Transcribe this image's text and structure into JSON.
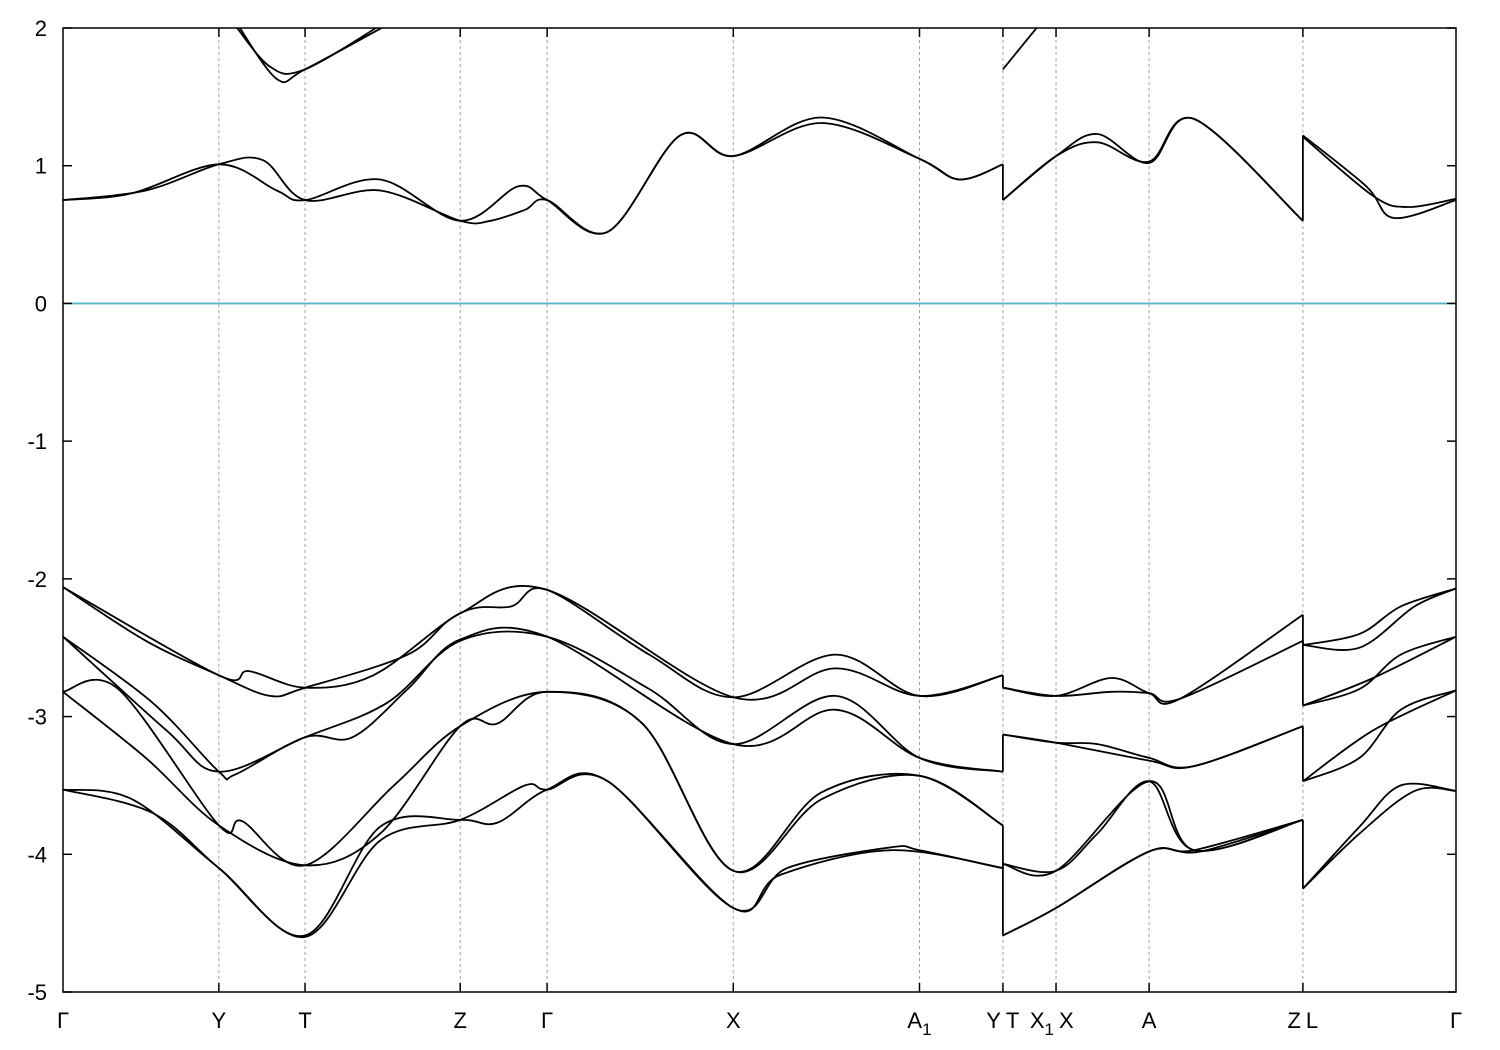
{
  "chart_data": {
    "type": "line",
    "title": "",
    "xlabel": "",
    "ylabel": "",
    "ylim": [
      -5,
      2
    ],
    "yticks": [
      2,
      1,
      0,
      -1,
      -2,
      -3,
      -4,
      -5
    ],
    "ytick_labels": [
      "2",
      "1",
      "0",
      "-1",
      "-2",
      "-3",
      "-4",
      "-5"
    ],
    "xlim": [
      0,
      20.2
    ],
    "kpoints": [
      {
        "label": "Γ",
        "x": 0
      },
      {
        "label": "Y",
        "x": 2.26
      },
      {
        "label": "T",
        "x": 3.51
      },
      {
        "label": "Z",
        "x": 5.76
      },
      {
        "label": "Γ",
        "x": 7.02
      },
      {
        "label": "X",
        "x": 9.72
      },
      {
        "label": "A",
        "sub": "1",
        "x": 12.42
      },
      {
        "label": "Y",
        "x": 13.63
      },
      {
        "label": "T",
        "x": 13.63
      },
      {
        "label": "X",
        "sub": "1",
        "x": 14.4
      },
      {
        "label": "X",
        "x": 14.4
      },
      {
        "label": "A",
        "x": 15.75
      },
      {
        "label": "Z",
        "x": 17.98
      },
      {
        "label": "L",
        "x": 17.98
      },
      {
        "label": "Γ",
        "x": 20.2
      }
    ],
    "vlines": [
      2.26,
      3.51,
      5.76,
      7.02,
      9.72,
      12.42,
      13.63,
      14.4,
      15.75,
      17.98
    ],
    "grid": "vertical-dashed",
    "fermi_level": 0,
    "colors": {
      "bands": "#000000",
      "fermi": "#5ab4c8"
    },
    "series": [
      {
        "values": [
          [
            0,
            0.75
          ],
          [
            1,
            0.8
          ],
          [
            2.26,
            1.01
          ],
          [
            3.1,
            0.82
          ],
          [
            3.51,
            0.75
          ],
          [
            4.6,
            0.9
          ],
          [
            5.76,
            0.6
          ],
          [
            6.6,
            0.85
          ],
          [
            7.02,
            0.75
          ],
          [
            7.9,
            0.52
          ],
          [
            8.95,
            1.22
          ],
          [
            9.72,
            1.07
          ],
          [
            11.0,
            1.35
          ],
          [
            12.42,
            1.05
          ],
          [
            13.0,
            0.9
          ],
          [
            13.63,
            1.01
          ]
        ]
      },
      {
        "values": [
          [
            0,
            0.75
          ],
          [
            1.2,
            0.82
          ],
          [
            2.26,
            1.01
          ],
          [
            2.9,
            1.04
          ],
          [
            3.51,
            0.75
          ],
          [
            4.6,
            0.82
          ],
          [
            5.76,
            0.6
          ],
          [
            6.2,
            0.6
          ],
          [
            6.7,
            0.68
          ],
          [
            7.02,
            0.75
          ],
          [
            7.9,
            0.52
          ],
          [
            8.95,
            1.22
          ],
          [
            9.72,
            1.07
          ],
          [
            11.0,
            1.31
          ],
          [
            12.42,
            1.05
          ],
          [
            13.0,
            0.9
          ],
          [
            13.63,
            1.01
          ]
        ]
      },
      {
        "values": [
          [
            2.45,
            2.05
          ],
          [
            3.0,
            1.72
          ],
          [
            3.51,
            1.7
          ],
          [
            4.7,
            2.05
          ]
        ]
      },
      {
        "values": [
          [
            2.5,
            2.05
          ],
          [
            3.1,
            1.63
          ],
          [
            3.51,
            1.7
          ],
          [
            4.8,
            2.05
          ]
        ]
      },
      {
        "values": [
          [
            13.63,
            1.7
          ],
          [
            14.2,
            2.05
          ]
        ]
      },
      {
        "values": [
          [
            13.63,
            0.75
          ],
          [
            14.4,
            1.07
          ],
          [
            15.0,
            1.23
          ],
          [
            15.75,
            1.02
          ],
          [
            16.4,
            1.34
          ],
          [
            17.98,
            0.6
          ]
        ]
      },
      {
        "values": [
          [
            13.63,
            0.75
          ],
          [
            14.4,
            1.07
          ],
          [
            15.0,
            1.17
          ],
          [
            15.75,
            1.03
          ],
          [
            16.4,
            1.34
          ],
          [
            17.98,
            0.6
          ]
        ]
      },
      {
        "values": [
          [
            17.98,
            1.22
          ],
          [
            18.9,
            0.85
          ],
          [
            19.3,
            0.62
          ],
          [
            20.2,
            0.75
          ]
        ]
      },
      {
        "values": [
          [
            17.98,
            1.21
          ],
          [
            19.0,
            0.78
          ],
          [
            19.5,
            0.7
          ],
          [
            20.2,
            0.76
          ]
        ]
      },
      {
        "values": [
          [
            0,
            -2.06
          ],
          [
            2.26,
            -2.7
          ],
          [
            2.7,
            -2.67
          ],
          [
            3.51,
            -2.79
          ],
          [
            4.5,
            -2.7
          ],
          [
            5.76,
            -2.25
          ],
          [
            6.5,
            -2.2
          ],
          [
            7.02,
            -2.08
          ],
          [
            8.5,
            -2.55
          ],
          [
            9.72,
            -2.86
          ],
          [
            11.2,
            -2.55
          ],
          [
            12.42,
            -2.85
          ],
          [
            13.63,
            -2.7
          ]
        ]
      },
      {
        "values": [
          [
            0,
            -2.06
          ],
          [
            1.2,
            -2.45
          ],
          [
            2.26,
            -2.7
          ],
          [
            3.0,
            -2.85
          ],
          [
            3.51,
            -2.79
          ],
          [
            5.0,
            -2.55
          ],
          [
            5.76,
            -2.25
          ],
          [
            7.02,
            -2.08
          ],
          [
            9.72,
            -2.86
          ],
          [
            11.2,
            -2.65
          ],
          [
            12.42,
            -2.85
          ],
          [
            13.63,
            -2.7
          ]
        ]
      },
      {
        "values": [
          [
            0,
            -2.42
          ],
          [
            1.5,
            -3.1
          ],
          [
            2.26,
            -3.4
          ],
          [
            3.51,
            -3.15
          ],
          [
            4.7,
            -2.9
          ],
          [
            5.76,
            -2.45
          ],
          [
            7.02,
            -2.42
          ],
          [
            8.5,
            -2.8
          ],
          [
            9.72,
            -3.2
          ],
          [
            11.2,
            -2.85
          ],
          [
            12.42,
            -3.3
          ],
          [
            13.63,
            -3.4
          ]
        ]
      },
      {
        "values": [
          [
            0,
            -2.42
          ],
          [
            1.3,
            -2.9
          ],
          [
            2.26,
            -3.4
          ],
          [
            2.5,
            -3.42
          ],
          [
            3.51,
            -3.15
          ],
          [
            4.2,
            -3.15
          ],
          [
            5.0,
            -2.8
          ],
          [
            5.76,
            -2.44
          ],
          [
            7.02,
            -2.42
          ],
          [
            9.72,
            -3.2
          ],
          [
            11.2,
            -2.95
          ],
          [
            12.42,
            -3.3
          ],
          [
            13.63,
            -3.4
          ]
        ]
      },
      {
        "values": [
          [
            0,
            -2.82
          ],
          [
            1.2,
            -3.3
          ],
          [
            2.26,
            -3.79
          ],
          [
            3.51,
            -4.08
          ],
          [
            4.6,
            -3.85
          ],
          [
            5.76,
            -3.07
          ],
          [
            6.3,
            -3.05
          ],
          [
            7.02,
            -2.82
          ],
          [
            8.4,
            -3.05
          ],
          [
            9.72,
            -4.12
          ],
          [
            11.0,
            -3.6
          ],
          [
            12.42,
            -3.43
          ],
          [
            13.63,
            -3.79
          ]
        ]
      },
      {
        "values": [
          [
            0,
            -2.82
          ],
          [
            0.8,
            -2.8
          ],
          [
            2.26,
            -3.79
          ],
          [
            2.6,
            -3.76
          ],
          [
            3.51,
            -4.08
          ],
          [
            4.8,
            -3.5
          ],
          [
            5.76,
            -3.07
          ],
          [
            7.02,
            -2.82
          ],
          [
            8.4,
            -3.05
          ],
          [
            9.72,
            -4.12
          ],
          [
            11.0,
            -3.55
          ],
          [
            12.42,
            -3.43
          ],
          [
            13.63,
            -3.79
          ]
        ]
      },
      {
        "values": [
          [
            0,
            -3.53
          ],
          [
            1.3,
            -3.7
          ],
          [
            2.26,
            -4.1
          ],
          [
            3.51,
            -4.6
          ],
          [
            4.6,
            -3.9
          ],
          [
            5.76,
            -3.75
          ],
          [
            6.7,
            -3.5
          ],
          [
            7.02,
            -3.53
          ],
          [
            7.9,
            -3.47
          ],
          [
            9.72,
            -4.39
          ],
          [
            10.5,
            -4.1
          ],
          [
            12.0,
            -3.95
          ],
          [
            12.42,
            -3.97
          ],
          [
            13.63,
            -4.1
          ]
        ]
      },
      {
        "values": [
          [
            0,
            -3.53
          ],
          [
            1.0,
            -3.6
          ],
          [
            2.26,
            -4.1
          ],
          [
            3.51,
            -4.59
          ],
          [
            4.6,
            -3.8
          ],
          [
            5.76,
            -3.75
          ],
          [
            6.3,
            -3.77
          ],
          [
            7.02,
            -3.53
          ],
          [
            7.9,
            -3.47
          ],
          [
            9.72,
            -4.39
          ],
          [
            10.4,
            -4.15
          ],
          [
            12.0,
            -3.97
          ],
          [
            13.63,
            -4.1
          ]
        ]
      },
      {
        "values": [
          [
            13.63,
            -2.79
          ],
          [
            14.4,
            -2.85
          ],
          [
            15.2,
            -2.72
          ],
          [
            15.75,
            -2.83
          ],
          [
            16.2,
            -2.87
          ],
          [
            17.98,
            -2.26
          ]
        ]
      },
      {
        "values": [
          [
            13.63,
            -2.79
          ],
          [
            14.4,
            -2.85
          ],
          [
            15.2,
            -2.82
          ],
          [
            15.75,
            -2.83
          ],
          [
            16.2,
            -2.87
          ],
          [
            17.98,
            -2.45
          ]
        ]
      },
      {
        "values": [
          [
            13.63,
            -3.13
          ],
          [
            14.4,
            -3.19
          ],
          [
            15.0,
            -3.2
          ],
          [
            15.75,
            -3.3
          ],
          [
            16.4,
            -3.36
          ],
          [
            17.98,
            -3.07
          ]
        ]
      },
      {
        "values": [
          [
            13.63,
            -3.13
          ],
          [
            14.4,
            -3.19
          ],
          [
            15.75,
            -3.32
          ],
          [
            16.4,
            -3.36
          ],
          [
            17.98,
            -3.07
          ]
        ]
      },
      {
        "values": [
          [
            13.63,
            -4.07
          ],
          [
            14.4,
            -4.12
          ],
          [
            15.0,
            -3.85
          ],
          [
            15.75,
            -3.47
          ],
          [
            16.4,
            -3.97
          ],
          [
            17.98,
            -3.75
          ]
        ]
      },
      {
        "values": [
          [
            13.63,
            -4.07
          ],
          [
            14.4,
            -4.12
          ],
          [
            15.75,
            -3.47
          ],
          [
            16.4,
            -3.97
          ],
          [
            17.98,
            -3.75
          ]
        ]
      },
      {
        "values": [
          [
            13.63,
            -4.59
          ],
          [
            14.4,
            -4.39
          ],
          [
            15.75,
            -3.98
          ],
          [
            16.4,
            -3.97
          ],
          [
            17.98,
            -3.75
          ]
        ]
      },
      {
        "values": [
          [
            13.63,
            -4.59
          ],
          [
            14.4,
            -4.39
          ],
          [
            15.75,
            -3.98
          ],
          [
            16.5,
            -3.98
          ],
          [
            17.98,
            -3.75
          ]
        ]
      },
      {
        "values": [
          [
            17.98,
            -2.48
          ],
          [
            18.8,
            -2.5
          ],
          [
            19.6,
            -2.2
          ],
          [
            20.2,
            -2.07
          ]
        ]
      },
      {
        "values": [
          [
            17.98,
            -2.48
          ],
          [
            18.8,
            -2.4
          ],
          [
            19.4,
            -2.2
          ],
          [
            20.2,
            -2.07
          ]
        ]
      },
      {
        "values": [
          [
            17.98,
            -2.92
          ],
          [
            18.8,
            -2.8
          ],
          [
            19.4,
            -2.55
          ],
          [
            20.2,
            -2.42
          ]
        ]
      },
      {
        "values": [
          [
            17.98,
            -2.92
          ],
          [
            19.0,
            -2.72
          ],
          [
            20.2,
            -2.42
          ]
        ]
      },
      {
        "values": [
          [
            17.98,
            -3.47
          ],
          [
            18.8,
            -3.3
          ],
          [
            19.4,
            -2.95
          ],
          [
            20.2,
            -2.81
          ]
        ]
      },
      {
        "values": [
          [
            17.98,
            -3.47
          ],
          [
            19.0,
            -3.1
          ],
          [
            20.2,
            -2.81
          ]
        ]
      },
      {
        "values": [
          [
            17.98,
            -4.25
          ],
          [
            18.8,
            -3.8
          ],
          [
            19.4,
            -3.5
          ],
          [
            20.2,
            -3.54
          ]
        ]
      },
      {
        "values": [
          [
            17.98,
            -4.25
          ],
          [
            18.8,
            -3.85
          ],
          [
            19.6,
            -3.54
          ],
          [
            20.2,
            -3.54
          ]
        ]
      },
      {
        "values": [
          [
            13.63,
            -3.79
          ],
          [
            13.63,
            -4.59
          ]
        ]
      },
      {
        "values": [
          [
            13.63,
            -2.7
          ],
          [
            13.63,
            -2.79
          ]
        ]
      },
      {
        "values": [
          [
            13.63,
            -3.13
          ],
          [
            13.63,
            -3.4
          ]
        ]
      },
      {
        "values": [
          [
            13.63,
            -4.07
          ],
          [
            13.63,
            -4.1
          ]
        ]
      },
      {
        "values": [
          [
            13.63,
            0.75
          ],
          [
            13.63,
            1.01
          ]
        ]
      },
      {
        "values": [
          [
            17.98,
            0.6
          ],
          [
            17.98,
            1.22
          ]
        ]
      },
      {
        "values": [
          [
            17.98,
            -2.26
          ],
          [
            17.98,
            -2.48
          ]
        ]
      },
      {
        "values": [
          [
            17.98,
            -2.45
          ],
          [
            17.98,
            -2.92
          ]
        ]
      },
      {
        "values": [
          [
            17.98,
            -3.07
          ],
          [
            17.98,
            -3.47
          ]
        ]
      },
      {
        "values": [
          [
            17.98,
            -3.75
          ],
          [
            17.98,
            -4.25
          ]
        ]
      }
    ]
  }
}
